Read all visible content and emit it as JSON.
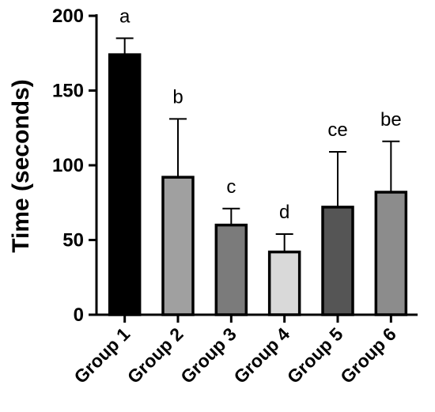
{
  "chart_data": {
    "type": "bar",
    "ylabel": "Time (seconds)",
    "xlabel": "",
    "ylim": [
      0,
      200
    ],
    "yticks": [
      0,
      50,
      100,
      150,
      200
    ],
    "grid": false,
    "categories": [
      "Group 1",
      "Group 2",
      "Group 3",
      "Group 4",
      "Group 5",
      "Group 6"
    ],
    "values": [
      174,
      92,
      60,
      42,
      72,
      82
    ],
    "error_upper": [
      185,
      131,
      71,
      54,
      109,
      116
    ],
    "significance_labels": [
      "a",
      "b",
      "c",
      "d",
      "ce",
      "be"
    ],
    "bar_colors": [
      "#000000",
      "#a0a0a0",
      "#7b7b7b",
      "#d9d9d9",
      "#555555",
      "#8c8c8c"
    ]
  }
}
